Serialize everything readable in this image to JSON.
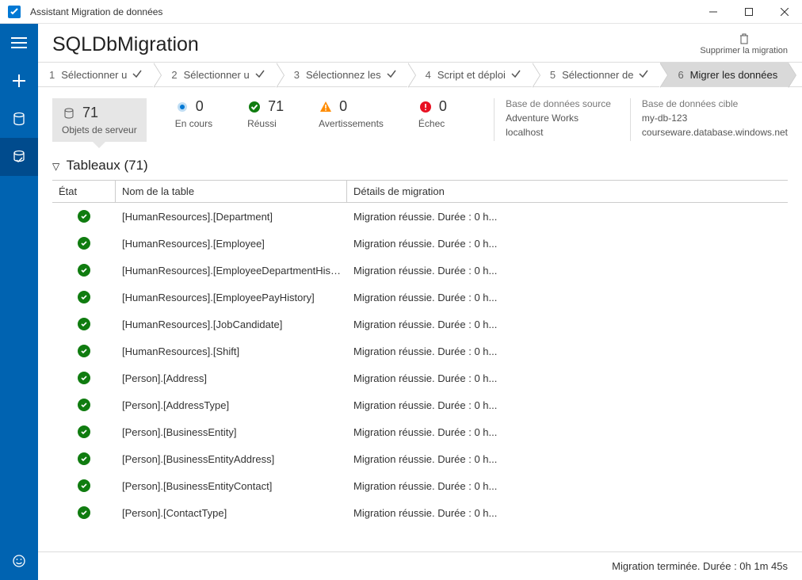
{
  "colors": {
    "sidebar_bg": "#0063b1",
    "sidebar_selected": "#004b8d",
    "step_active_bg": "#d9d9d9",
    "stat_box_bg": "#e6e6e6",
    "success_green": "#107c10",
    "inprogress_blue": "#0078d4",
    "warning_orange": "#ff8c00",
    "failed_red": "#e81123",
    "border_gray": "#dcdcdc"
  },
  "titlebar": {
    "app_title": "Assistant Migration de données"
  },
  "header": {
    "title": "SQLDbMigration",
    "delete_label": "Supprimer la migration"
  },
  "steps": [
    {
      "num": "1",
      "label": "Sélectionner u",
      "done": true,
      "active": false
    },
    {
      "num": "2",
      "label": "Sélectionner u",
      "done": true,
      "active": false
    },
    {
      "num": "3",
      "label": "Sélectionnez les",
      "done": true,
      "active": false
    },
    {
      "num": "4",
      "label": "Script et déploi",
      "done": true,
      "active": false
    },
    {
      "num": "5",
      "label": "Sélectionner de",
      "done": true,
      "active": false
    },
    {
      "num": "6",
      "label": "Migrer les données",
      "done": false,
      "active": true
    }
  ],
  "stats": {
    "server_objects": {
      "value": "71",
      "label": "Objets de serveur"
    },
    "in_progress": {
      "value": "0",
      "label": "En cours"
    },
    "succeeded": {
      "value": "71",
      "label": "Réussi"
    },
    "warnings": {
      "value": "0",
      "label": "Avertissements"
    },
    "failed": {
      "value": "0",
      "label": "Échec"
    }
  },
  "dbinfo": {
    "source": {
      "title": "Base de données source",
      "db": "Adventure Works",
      "server": "localhost"
    },
    "target": {
      "title": "Base de données cible",
      "db": "my-db-123",
      "server": "courseware.database.windows.net"
    }
  },
  "tables_section": {
    "title_prefix": "Tableaux",
    "count": "71",
    "columns": {
      "status": "État",
      "name": "Nom de la table",
      "detail": "Détails de migration"
    },
    "rows": [
      {
        "name": "[HumanResources].[Department]",
        "detail": "Migration réussie. Durée : 0 h..."
      },
      {
        "name": "[HumanResources].[Employee]",
        "detail": "Migration réussie. Durée : 0 h..."
      },
      {
        "name": "[HumanResources].[EmployeeDepartmentHistory]",
        "detail": "Migration réussie. Durée : 0 h..."
      },
      {
        "name": "[HumanResources].[EmployeePayHistory]",
        "detail": "Migration réussie. Durée : 0 h..."
      },
      {
        "name": "[HumanResources].[JobCandidate]",
        "detail": "Migration réussie. Durée : 0 h..."
      },
      {
        "name": "[HumanResources].[Shift]",
        "detail": "Migration réussie. Durée : 0 h..."
      },
      {
        "name": "[Person].[Address]",
        "detail": "Migration réussie. Durée : 0 h..."
      },
      {
        "name": "[Person].[AddressType]",
        "detail": "Migration réussie. Durée : 0 h..."
      },
      {
        "name": "[Person].[BusinessEntity]",
        "detail": "Migration réussie. Durée : 0 h..."
      },
      {
        "name": "[Person].[BusinessEntityAddress]",
        "detail": "Migration réussie. Durée : 0 h..."
      },
      {
        "name": "[Person].[BusinessEntityContact]",
        "detail": "Migration réussie. Durée : 0 h..."
      },
      {
        "name": "[Person].[ContactType]",
        "detail": "Migration réussie. Durée : 0 h..."
      }
    ]
  },
  "footer": {
    "status": "Migration terminée. Durée : 0h 1m 45s"
  }
}
